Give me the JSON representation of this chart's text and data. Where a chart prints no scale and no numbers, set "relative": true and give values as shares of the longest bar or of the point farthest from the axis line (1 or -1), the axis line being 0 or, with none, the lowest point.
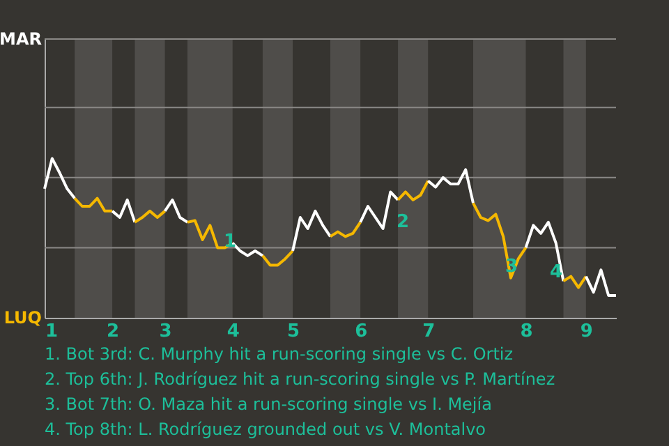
{
  "chart_data": {
    "type": "line",
    "relative": true,
    "categories": [
      "1",
      null,
      null,
      null,
      null,
      null,
      null,
      null,
      null,
      "2",
      null,
      null,
      null,
      null,
      null,
      null,
      "3",
      null,
      null,
      null,
      null,
      null,
      null,
      null,
      null,
      "4",
      null,
      null,
      null,
      null,
      null,
      null,
      null,
      "5",
      null,
      null,
      null,
      null,
      null,
      null,
      null,
      null,
      "6",
      null,
      null,
      null,
      null,
      null,
      null,
      null,
      null,
      "7",
      null,
      null,
      null,
      null,
      null,
      null,
      null,
      null,
      null,
      null,
      null,
      null,
      "8",
      null,
      null,
      null,
      null,
      null,
      null,
      null,
      "9",
      null,
      null,
      null,
      null
    ],
    "marker": "none",
    "line_style": "solid",
    "ref_lines": [
      {
        "axis": "y",
        "value": 0.44,
        "color": "#8a8886"
      },
      {
        "axis": "y",
        "value": 0.88,
        "color": "#8a8886"
      },
      {
        "axis": "y",
        "value": 1.32,
        "color": "#8a8886"
      },
      {
        "axis": "y",
        "value": 1.75,
        "color": "#8a8886"
      }
    ],
    "series": [
      {
        "color": "#ffffff",
        "values": [
          0.81,
          1,
          0.91,
          0.81,
          0.75,
          null,
          null,
          null,
          null,
          null,
          null,
          null,
          null,
          null,
          null,
          null,
          null,
          null,
          null,
          null,
          null,
          null,
          null,
          null,
          null,
          null,
          null,
          null,
          null,
          null,
          null,
          null,
          null,
          null,
          null,
          null,
          null,
          null,
          null,
          null,
          null,
          null,
          null,
          null,
          null,
          null,
          null,
          null,
          null,
          null,
          null,
          null,
          null,
          null,
          null,
          null,
          null,
          null,
          null,
          null,
          null,
          null,
          null,
          null,
          null,
          null,
          null,
          null,
          null,
          null,
          null,
          null,
          null,
          null,
          null,
          null,
          null
        ]
      },
      {
        "color": "#f5b800",
        "values": [
          null,
          null,
          null,
          null,
          0.75,
          0.7,
          0.7,
          0.75,
          0.67,
          0.67,
          null,
          null,
          null,
          null,
          null,
          null,
          null,
          null,
          null,
          null,
          null,
          null,
          null,
          null,
          null,
          null,
          null,
          null,
          null,
          null,
          null,
          null,
          null,
          null,
          null,
          null,
          null,
          null,
          null,
          null,
          null,
          null,
          null,
          null,
          null,
          null,
          null,
          null,
          null,
          null,
          null,
          null,
          null,
          null,
          null,
          null,
          null,
          null,
          null,
          null,
          null,
          null,
          null,
          null,
          null,
          null,
          null,
          null,
          null,
          null,
          null,
          null,
          null,
          null,
          null,
          null,
          null
        ]
      },
      {
        "color": "#ffffff",
        "values": [
          null,
          null,
          null,
          null,
          null,
          null,
          null,
          null,
          null,
          0.67,
          0.63,
          0.74,
          0.6,
          null,
          null,
          null,
          null,
          null,
          null,
          null,
          null,
          null,
          null,
          null,
          null,
          null,
          null,
          null,
          null,
          null,
          null,
          null,
          null,
          null,
          null,
          null,
          null,
          null,
          null,
          null,
          null,
          null,
          null,
          null,
          null,
          null,
          null,
          null,
          null,
          null,
          null,
          null,
          null,
          null,
          null,
          null,
          null,
          null,
          null,
          null,
          null,
          null,
          null,
          null,
          null,
          null,
          null,
          null,
          null,
          null,
          null,
          null,
          null,
          null,
          null,
          null,
          null
        ]
      },
      {
        "color": "#f5b800",
        "values": [
          null,
          null,
          null,
          null,
          null,
          null,
          null,
          null,
          null,
          null,
          null,
          null,
          0.6,
          0.63,
          0.67,
          0.63,
          0.67,
          null,
          null,
          null,
          null,
          null,
          null,
          null,
          null,
          null,
          null,
          null,
          null,
          null,
          null,
          null,
          null,
          null,
          null,
          null,
          null,
          null,
          null,
          null,
          null,
          null,
          null,
          null,
          null,
          null,
          null,
          null,
          null,
          null,
          null,
          null,
          null,
          null,
          null,
          null,
          null,
          null,
          null,
          null,
          null,
          null,
          null,
          null,
          null,
          null,
          null,
          null,
          null,
          null,
          null,
          null,
          null,
          null,
          null,
          null,
          null
        ]
      },
      {
        "color": "#ffffff",
        "values": [
          null,
          null,
          null,
          null,
          null,
          null,
          null,
          null,
          null,
          null,
          null,
          null,
          null,
          null,
          null,
          null,
          0.67,
          0.74,
          0.63,
          0.6,
          null,
          null,
          null,
          null,
          null,
          null,
          null,
          null,
          null,
          null,
          null,
          null,
          null,
          null,
          null,
          null,
          null,
          null,
          null,
          null,
          null,
          null,
          null,
          null,
          null,
          null,
          null,
          null,
          null,
          null,
          null,
          null,
          null,
          null,
          null,
          null,
          null,
          null,
          null,
          null,
          null,
          null,
          null,
          null,
          null,
          null,
          null,
          null,
          null,
          null,
          null,
          null,
          null,
          null,
          null,
          null,
          null
        ]
      },
      {
        "color": "#f5b800",
        "values": [
          null,
          null,
          null,
          null,
          null,
          null,
          null,
          null,
          null,
          null,
          null,
          null,
          null,
          null,
          null,
          null,
          null,
          null,
          null,
          0.6,
          0.61,
          0.49,
          0.58,
          0.44,
          0.44,
          0.47,
          null,
          null,
          null,
          null,
          null,
          null,
          null,
          null,
          null,
          null,
          null,
          null,
          null,
          null,
          null,
          null,
          null,
          null,
          null,
          null,
          null,
          null,
          null,
          null,
          null,
          null,
          null,
          null,
          null,
          null,
          null,
          null,
          null,
          null,
          null,
          null,
          null,
          null,
          null,
          null,
          null,
          null,
          null,
          null,
          null,
          null,
          null,
          null,
          null,
          null,
          null
        ]
      },
      {
        "color": "#ffffff",
        "values": [
          null,
          null,
          null,
          null,
          null,
          null,
          null,
          null,
          null,
          null,
          null,
          null,
          null,
          null,
          null,
          null,
          null,
          null,
          null,
          null,
          null,
          null,
          null,
          null,
          null,
          0.47,
          0.42,
          0.39,
          0.42,
          0.39,
          null,
          null,
          null,
          null,
          null,
          null,
          null,
          null,
          null,
          null,
          null,
          null,
          null,
          null,
          null,
          null,
          null,
          null,
          null,
          null,
          null,
          null,
          null,
          null,
          null,
          null,
          null,
          null,
          null,
          null,
          null,
          null,
          null,
          null,
          null,
          null,
          null,
          null,
          null,
          null,
          null,
          null,
          null,
          null,
          null,
          null,
          null
        ]
      },
      {
        "color": "#f5b800",
        "values": [
          null,
          null,
          null,
          null,
          null,
          null,
          null,
          null,
          null,
          null,
          null,
          null,
          null,
          null,
          null,
          null,
          null,
          null,
          null,
          null,
          null,
          null,
          null,
          null,
          null,
          null,
          null,
          null,
          null,
          0.39,
          0.33,
          0.33,
          0.37,
          0.42,
          null,
          null,
          null,
          null,
          null,
          null,
          null,
          null,
          null,
          null,
          null,
          null,
          null,
          null,
          null,
          null,
          null,
          null,
          null,
          null,
          null,
          null,
          null,
          null,
          null,
          null,
          null,
          null,
          null,
          null,
          null,
          null,
          null,
          null,
          null,
          null,
          null,
          null,
          null,
          null,
          null,
          null,
          null
        ]
      },
      {
        "color": "#ffffff",
        "values": [
          null,
          null,
          null,
          null,
          null,
          null,
          null,
          null,
          null,
          null,
          null,
          null,
          null,
          null,
          null,
          null,
          null,
          null,
          null,
          null,
          null,
          null,
          null,
          null,
          null,
          null,
          null,
          null,
          null,
          null,
          null,
          null,
          null,
          0.42,
          0.63,
          0.56,
          0.67,
          0.58,
          0.51,
          null,
          null,
          null,
          null,
          null,
          null,
          null,
          null,
          null,
          null,
          null,
          null,
          null,
          null,
          null,
          null,
          null,
          null,
          null,
          null,
          null,
          null,
          null,
          null,
          null,
          null,
          null,
          null,
          null,
          null,
          null,
          null,
          null,
          null,
          null,
          null,
          null,
          null
        ]
      },
      {
        "color": "#f5b800",
        "values": [
          null,
          null,
          null,
          null,
          null,
          null,
          null,
          null,
          null,
          null,
          null,
          null,
          null,
          null,
          null,
          null,
          null,
          null,
          null,
          null,
          null,
          null,
          null,
          null,
          null,
          null,
          null,
          null,
          null,
          null,
          null,
          null,
          null,
          null,
          null,
          null,
          null,
          null,
          0.51,
          0.54,
          0.51,
          0.53,
          0.6,
          null,
          null,
          null,
          null,
          null,
          null,
          null,
          null,
          null,
          null,
          null,
          null,
          null,
          null,
          null,
          null,
          null,
          null,
          null,
          null,
          null,
          null,
          null,
          null,
          null,
          null,
          null,
          null,
          null,
          null,
          null,
          null,
          null,
          null
        ]
      },
      {
        "color": "#ffffff",
        "values": [
          null,
          null,
          null,
          null,
          null,
          null,
          null,
          null,
          null,
          null,
          null,
          null,
          null,
          null,
          null,
          null,
          null,
          null,
          null,
          null,
          null,
          null,
          null,
          null,
          null,
          null,
          null,
          null,
          null,
          null,
          null,
          null,
          null,
          null,
          null,
          null,
          null,
          null,
          null,
          null,
          null,
          null,
          0.6,
          0.7,
          0.63,
          0.56,
          0.79,
          0.74,
          null,
          null,
          null,
          null,
          null,
          null,
          null,
          null,
          null,
          null,
          null,
          null,
          null,
          null,
          null,
          null,
          null,
          null,
          null,
          null,
          null,
          null,
          null,
          null,
          null,
          null,
          null,
          null,
          null
        ]
      },
      {
        "color": "#f5b800",
        "values": [
          null,
          null,
          null,
          null,
          null,
          null,
          null,
          null,
          null,
          null,
          null,
          null,
          null,
          null,
          null,
          null,
          null,
          null,
          null,
          null,
          null,
          null,
          null,
          null,
          null,
          null,
          null,
          null,
          null,
          null,
          null,
          null,
          null,
          null,
          null,
          null,
          null,
          null,
          null,
          null,
          null,
          null,
          null,
          null,
          null,
          null,
          null,
          0.74,
          0.79,
          0.74,
          0.77,
          0.86,
          null,
          null,
          null,
          null,
          null,
          null,
          null,
          null,
          null,
          null,
          null,
          null,
          null,
          null,
          null,
          null,
          null,
          null,
          null,
          null,
          null,
          null,
          null,
          null,
          null
        ]
      },
      {
        "color": "#ffffff",
        "values": [
          null,
          null,
          null,
          null,
          null,
          null,
          null,
          null,
          null,
          null,
          null,
          null,
          null,
          null,
          null,
          null,
          null,
          null,
          null,
          null,
          null,
          null,
          null,
          null,
          null,
          null,
          null,
          null,
          null,
          null,
          null,
          null,
          null,
          null,
          null,
          null,
          null,
          null,
          null,
          null,
          null,
          null,
          null,
          null,
          null,
          null,
          null,
          null,
          null,
          null,
          null,
          0.86,
          0.82,
          0.88,
          0.84,
          0.84,
          0.93,
          0.72,
          null,
          null,
          null,
          null,
          null,
          null,
          null,
          null,
          null,
          null,
          null,
          null,
          null,
          null,
          null,
          null,
          null,
          null,
          null
        ]
      },
      {
        "color": "#f5b800",
        "values": [
          null,
          null,
          null,
          null,
          null,
          null,
          null,
          null,
          null,
          null,
          null,
          null,
          null,
          null,
          null,
          null,
          null,
          null,
          null,
          null,
          null,
          null,
          null,
          null,
          null,
          null,
          null,
          null,
          null,
          null,
          null,
          null,
          null,
          null,
          null,
          null,
          null,
          null,
          null,
          null,
          null,
          null,
          null,
          null,
          null,
          null,
          null,
          null,
          null,
          null,
          null,
          null,
          null,
          null,
          null,
          null,
          null,
          0.72,
          0.63,
          0.61,
          0.65,
          0.51,
          0.25,
          0.37,
          0.44,
          null,
          null,
          null,
          null,
          null,
          null,
          null,
          null,
          null,
          null,
          null,
          null
        ]
      },
      {
        "color": "#ffffff",
        "values": [
          null,
          null,
          null,
          null,
          null,
          null,
          null,
          null,
          null,
          null,
          null,
          null,
          null,
          null,
          null,
          null,
          null,
          null,
          null,
          null,
          null,
          null,
          null,
          null,
          null,
          null,
          null,
          null,
          null,
          null,
          null,
          null,
          null,
          null,
          null,
          null,
          null,
          null,
          null,
          null,
          null,
          null,
          null,
          null,
          null,
          null,
          null,
          null,
          null,
          null,
          null,
          null,
          null,
          null,
          null,
          null,
          null,
          null,
          null,
          null,
          null,
          null,
          null,
          null,
          0.44,
          0.58,
          0.53,
          0.6,
          0.47,
          0.23,
          null,
          null,
          null,
          null,
          null,
          null,
          null
        ]
      },
      {
        "color": "#f5b800",
        "values": [
          null,
          null,
          null,
          null,
          null,
          null,
          null,
          null,
          null,
          null,
          null,
          null,
          null,
          null,
          null,
          null,
          null,
          null,
          null,
          null,
          null,
          null,
          null,
          null,
          null,
          null,
          null,
          null,
          null,
          null,
          null,
          null,
          null,
          null,
          null,
          null,
          null,
          null,
          null,
          null,
          null,
          null,
          null,
          null,
          null,
          null,
          null,
          null,
          null,
          null,
          null,
          null,
          null,
          null,
          null,
          null,
          null,
          null,
          null,
          null,
          null,
          null,
          null,
          null,
          null,
          null,
          null,
          null,
          null,
          0.23,
          0.26,
          0.19,
          0.26,
          null,
          null,
          null,
          null
        ]
      },
      {
        "color": "#ffffff",
        "values": [
          null,
          null,
          null,
          null,
          null,
          null,
          null,
          null,
          null,
          null,
          null,
          null,
          null,
          null,
          null,
          null,
          null,
          null,
          null,
          null,
          null,
          null,
          null,
          null,
          null,
          null,
          null,
          null,
          null,
          null,
          null,
          null,
          null,
          null,
          null,
          null,
          null,
          null,
          null,
          null,
          null,
          null,
          null,
          null,
          null,
          null,
          null,
          null,
          null,
          null,
          null,
          null,
          null,
          null,
          null,
          null,
          null,
          null,
          null,
          null,
          null,
          null,
          null,
          null,
          null,
          null,
          null,
          null,
          null,
          null,
          null,
          null,
          0.26,
          0.16,
          0.3,
          0.14,
          0.14
        ]
      }
    ],
    "annotations": [
      "MAR",
      "LUQ",
      "1",
      "2",
      "3",
      "4",
      "1. Bot 3rd: C. Murphy hit a run-scoring single vs C. Ortiz",
      "2. Top 6th: J. Rodríguez hit a run-scoring single vs P. Martínez",
      "3. Bot 7th: O. Maza hit a run-scoring single vs I. Mejía",
      "4. Top 8th: L. Rodríguez grounded out vs V. Montalvo"
    ]
  }
}
